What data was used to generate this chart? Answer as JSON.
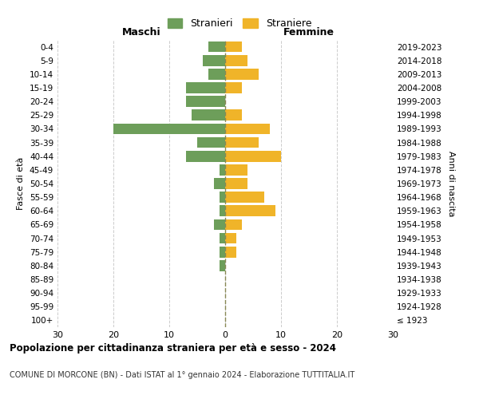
{
  "age_groups": [
    "100+",
    "95-99",
    "90-94",
    "85-89",
    "80-84",
    "75-79",
    "70-74",
    "65-69",
    "60-64",
    "55-59",
    "50-54",
    "45-49",
    "40-44",
    "35-39",
    "30-34",
    "25-29",
    "20-24",
    "15-19",
    "10-14",
    "5-9",
    "0-4"
  ],
  "birth_years": [
    "≤ 1923",
    "1924-1928",
    "1929-1933",
    "1934-1938",
    "1939-1943",
    "1944-1948",
    "1949-1953",
    "1954-1958",
    "1959-1963",
    "1964-1968",
    "1969-1973",
    "1974-1978",
    "1979-1983",
    "1984-1988",
    "1989-1993",
    "1994-1998",
    "1999-2003",
    "2004-2008",
    "2009-2013",
    "2014-2018",
    "2019-2023"
  ],
  "males": [
    0,
    0,
    0,
    0,
    1,
    1,
    1,
    2,
    1,
    1,
    2,
    1,
    7,
    5,
    20,
    6,
    7,
    7,
    3,
    4,
    3
  ],
  "females": [
    0,
    0,
    0,
    0,
    0,
    2,
    2,
    3,
    9,
    7,
    4,
    4,
    10,
    6,
    8,
    3,
    0,
    3,
    6,
    4,
    3
  ],
  "male_color": "#6d9e5a",
  "female_color": "#f0b429",
  "center_line_color": "#888855",
  "grid_color": "#cccccc",
  "background_color": "#ffffff",
  "title": "Popolazione per cittadinanza straniera per età e sesso - 2024",
  "subtitle": "COMUNE DI MORCONE (BN) - Dati ISTAT al 1° gennaio 2024 - Elaborazione TUTTITALIA.IT",
  "xlabel_left": "Maschi",
  "xlabel_right": "Femmine",
  "ylabel_left": "Fasce di età",
  "ylabel_right": "Anni di nascita",
  "legend_males": "Stranieri",
  "legend_females": "Straniere",
  "xlim": 30,
  "bar_height": 0.8
}
